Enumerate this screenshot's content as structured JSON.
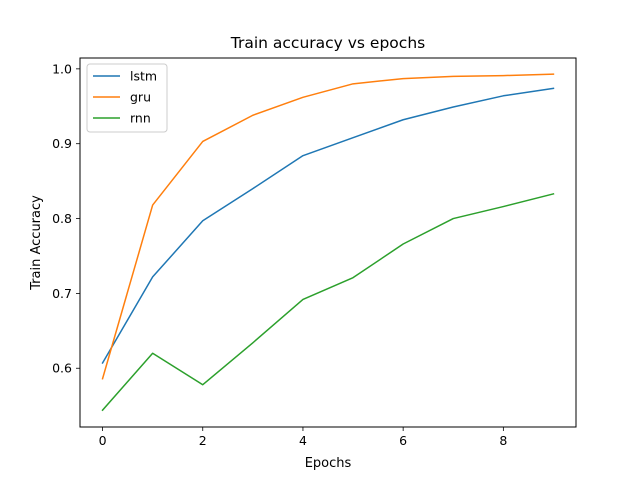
{
  "chart_data": {
    "type": "line",
    "title": "Train accuracy vs epochs",
    "xlabel": "Epochs",
    "ylabel": "Train Accuracy",
    "x": [
      0,
      1,
      2,
      3,
      4,
      5,
      6,
      7,
      8,
      9
    ],
    "xlim": [
      -0.45,
      9.45
    ],
    "ylim": [
      0.5215,
      1.0145
    ],
    "xticks": [
      0,
      2,
      4,
      6,
      8
    ],
    "xtick_labels": [
      "0",
      "2",
      "4",
      "6",
      "8"
    ],
    "yticks": [
      0.6,
      0.7,
      0.8,
      0.9,
      1.0
    ],
    "ytick_labels": [
      "0.6",
      "0.7",
      "0.8",
      "0.9",
      "1.0"
    ],
    "grid": false,
    "legend_position": "top-left",
    "series": [
      {
        "name": "lstm",
        "color": "#1f77b4",
        "values": [
          0.607,
          0.722,
          0.797,
          0.84,
          0.884,
          0.908,
          0.932,
          0.949,
          0.964,
          0.974
        ]
      },
      {
        "name": "gru",
        "color": "#ff7f0e",
        "values": [
          0.586,
          0.818,
          0.903,
          0.938,
          0.962,
          0.98,
          0.987,
          0.99,
          0.991,
          0.993
        ]
      },
      {
        "name": "rnn",
        "color": "#2ca02c",
        "values": [
          0.544,
          0.62,
          0.578,
          0.634,
          0.692,
          0.721,
          0.766,
          0.8,
          0.816,
          0.833
        ]
      }
    ]
  }
}
